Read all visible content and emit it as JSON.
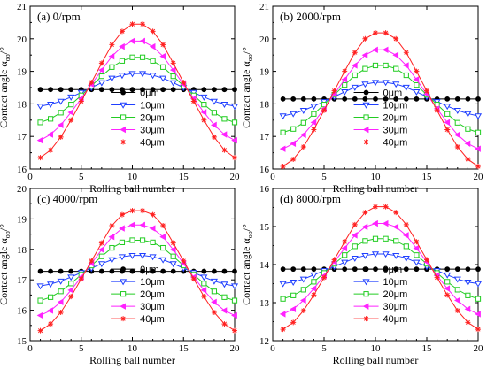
{
  "series_styles": [
    {
      "name": "0μm",
      "color": "#000000",
      "marker": "circle-filled"
    },
    {
      "name": "10μm",
      "color": "#1f3fff",
      "marker": "triangle-down-open"
    },
    {
      "name": "20μm",
      "color": "#22cc22",
      "marker": "square-open"
    },
    {
      "name": "30μm",
      "color": "#ff22ff",
      "marker": "triangle-left-filled"
    },
    {
      "name": "40μm",
      "color": "#ff2020",
      "marker": "star"
    }
  ],
  "chart_data": [
    {
      "type": "line",
      "title": "(a) 0/rpm",
      "xlabel": "Rolling ball number",
      "ylabel": "Contact angle α",
      "ylabel_sub": "oo",
      "ylabel_unit": "/°",
      "xlim": [
        0,
        20
      ],
      "ylim": [
        16,
        21
      ],
      "xticks": [
        0,
        5,
        10,
        15,
        20
      ],
      "yticks": [
        16,
        17,
        18,
        19,
        20,
        21
      ],
      "legend_position": "center-bottom",
      "x": [
        1,
        2,
        3,
        4,
        5,
        6,
        7,
        8,
        9,
        10,
        11,
        12,
        13,
        14,
        15,
        16,
        17,
        18,
        19,
        20
      ],
      "series": [
        {
          "name": "0μm",
          "values": [
            18.44,
            18.44,
            18.44,
            18.44,
            18.44,
            18.44,
            18.44,
            18.44,
            18.44,
            18.44,
            18.44,
            18.44,
            18.44,
            18.44,
            18.44,
            18.44,
            18.44,
            18.44,
            18.44,
            18.44
          ]
        },
        {
          "name": "10μm",
          "values": [
            17.93,
            17.99,
            18.08,
            18.21,
            18.35,
            18.5,
            18.65,
            18.79,
            18.88,
            18.93,
            18.93,
            18.88,
            18.79,
            18.65,
            18.5,
            18.35,
            18.21,
            18.08,
            17.99,
            17.93
          ]
        },
        {
          "name": "20μm",
          "values": [
            17.43,
            17.54,
            17.73,
            17.98,
            18.26,
            18.55,
            18.85,
            19.13,
            19.32,
            19.43,
            19.43,
            19.32,
            19.13,
            18.85,
            18.55,
            18.26,
            17.98,
            17.73,
            17.54,
            17.43
          ]
        },
        {
          "name": "30μm",
          "values": [
            16.88,
            17.06,
            17.35,
            17.74,
            18.16,
            18.6,
            19.04,
            19.46,
            19.76,
            19.93,
            19.93,
            19.76,
            19.46,
            19.04,
            18.6,
            18.16,
            17.74,
            17.35,
            17.06,
            16.88
          ]
        },
        {
          "name": "40μm",
          "values": [
            16.35,
            16.58,
            16.98,
            17.5,
            18.08,
            18.66,
            19.25,
            19.82,
            20.23,
            20.45,
            20.45,
            20.23,
            19.82,
            19.25,
            18.66,
            18.08,
            17.5,
            16.98,
            16.58,
            16.35
          ]
        }
      ]
    },
    {
      "type": "line",
      "title": "(b) 2000/rpm",
      "xlabel": "Rolling ball number",
      "ylabel": "Contact angle α",
      "ylabel_sub": "oo",
      "ylabel_unit": "/°",
      "xlim": [
        0,
        20
      ],
      "ylim": [
        16,
        21
      ],
      "xticks": [
        0,
        5,
        10,
        15,
        20
      ],
      "yticks": [
        16,
        17,
        18,
        19,
        20,
        21
      ],
      "legend_position": "center-bottom",
      "x": [
        1,
        2,
        3,
        4,
        5,
        6,
        7,
        8,
        9,
        10,
        11,
        12,
        13,
        14,
        15,
        16,
        17,
        18,
        19,
        20
      ],
      "series": [
        {
          "name": "0μm",
          "values": [
            18.15,
            18.15,
            18.15,
            18.15,
            18.15,
            18.15,
            18.15,
            18.15,
            18.15,
            18.15,
            18.15,
            18.15,
            18.15,
            18.15,
            18.15,
            18.15,
            18.15,
            18.15,
            18.15,
            18.15
          ]
        },
        {
          "name": "10μm",
          "values": [
            17.63,
            17.7,
            17.8,
            17.93,
            18.07,
            18.22,
            18.37,
            18.51,
            18.61,
            18.66,
            18.66,
            18.61,
            18.51,
            18.37,
            18.22,
            18.07,
            17.93,
            17.8,
            17.7,
            17.63
          ]
        },
        {
          "name": "20μm",
          "values": [
            17.12,
            17.23,
            17.42,
            17.69,
            17.98,
            18.28,
            18.58,
            18.88,
            19.08,
            19.18,
            19.18,
            19.08,
            18.88,
            18.58,
            18.28,
            17.98,
            17.69,
            17.42,
            17.23,
            17.12
          ]
        },
        {
          "name": "30μm",
          "values": [
            16.62,
            16.78,
            17.05,
            17.43,
            17.85,
            18.3,
            18.75,
            19.18,
            19.5,
            19.66,
            19.66,
            19.5,
            19.18,
            18.75,
            18.3,
            17.85,
            17.43,
            17.05,
            16.78,
            16.62
          ]
        },
        {
          "name": "40μm",
          "values": [
            16.08,
            16.3,
            16.68,
            17.21,
            17.8,
            18.4,
            19.0,
            19.58,
            20.0,
            20.18,
            20.18,
            20.0,
            19.58,
            19.0,
            18.4,
            17.8,
            17.21,
            16.68,
            16.3,
            16.08
          ]
        }
      ]
    },
    {
      "type": "line",
      "title": "(c) 4000/rpm",
      "xlabel": "Rolling ball number",
      "ylabel": "Contact angle α",
      "ylabel_sub": "oo",
      "ylabel_unit": "/°",
      "xlim": [
        0,
        20
      ],
      "ylim": [
        15,
        20
      ],
      "xticks": [
        0,
        5,
        10,
        15,
        20
      ],
      "yticks": [
        15,
        16,
        17,
        18,
        19,
        20
      ],
      "legend_position": "center-bottom",
      "x": [
        1,
        2,
        3,
        4,
        5,
        6,
        7,
        8,
        9,
        10,
        11,
        12,
        13,
        14,
        15,
        16,
        17,
        18,
        19,
        20
      ],
      "series": [
        {
          "name": "0μm",
          "values": [
            17.28,
            17.28,
            17.28,
            17.28,
            17.28,
            17.28,
            17.28,
            17.28,
            17.28,
            17.28,
            17.28,
            17.28,
            17.28,
            17.28,
            17.28,
            17.28,
            17.28,
            17.28,
            17.28,
            17.28
          ]
        },
        {
          "name": "10μm",
          "values": [
            16.8,
            16.86,
            16.96,
            17.09,
            17.24,
            17.38,
            17.53,
            17.66,
            17.76,
            17.8,
            17.8,
            17.76,
            17.66,
            17.53,
            17.38,
            17.24,
            17.09,
            16.96,
            16.86,
            16.8
          ]
        },
        {
          "name": "20μm",
          "values": [
            16.32,
            16.43,
            16.62,
            16.88,
            17.17,
            17.47,
            17.77,
            18.05,
            18.23,
            18.3,
            18.3,
            18.23,
            18.05,
            17.77,
            17.47,
            17.17,
            16.88,
            16.62,
            16.43,
            16.32
          ]
        },
        {
          "name": "30μm",
          "values": [
            15.83,
            15.99,
            16.27,
            16.66,
            17.09,
            17.54,
            17.99,
            18.41,
            18.69,
            18.8,
            18.8,
            18.69,
            18.41,
            17.99,
            17.54,
            17.09,
            16.66,
            16.27,
            15.99,
            15.83
          ]
        },
        {
          "name": "40μm",
          "values": [
            15.33,
            15.55,
            15.93,
            16.45,
            17.03,
            17.62,
            18.21,
            18.78,
            19.14,
            19.27,
            19.27,
            19.14,
            18.78,
            18.21,
            17.62,
            17.03,
            16.45,
            15.93,
            15.55,
            15.33
          ]
        }
      ]
    },
    {
      "type": "line",
      "title": "(d) 8000/rpm",
      "xlabel": "Rolling ball number",
      "ylabel": "Contact angle α",
      "ylabel_sub": "oo",
      "ylabel_unit": "/°",
      "xlim": [
        0,
        20
      ],
      "ylim": [
        12,
        16
      ],
      "xticks": [
        0,
        5,
        10,
        15,
        20
      ],
      "yticks": [
        12,
        13,
        14,
        15,
        16
      ],
      "legend_position": "center-bottom",
      "x": [
        1,
        2,
        3,
        4,
        5,
        6,
        7,
        8,
        9,
        10,
        11,
        12,
        13,
        14,
        15,
        16,
        17,
        18,
        19,
        20
      ],
      "series": [
        {
          "name": "0μm",
          "values": [
            13.88,
            13.88,
            13.88,
            13.88,
            13.88,
            13.88,
            13.88,
            13.88,
            13.88,
            13.88,
            13.88,
            13.88,
            13.88,
            13.88,
            13.88,
            13.88,
            13.88,
            13.88,
            13.88,
            13.88
          ]
        },
        {
          "name": "10μm",
          "values": [
            13.5,
            13.54,
            13.62,
            13.73,
            13.84,
            13.95,
            14.06,
            14.17,
            14.24,
            14.28,
            14.28,
            14.24,
            14.17,
            14.06,
            13.95,
            13.84,
            13.73,
            13.62,
            13.54,
            13.5
          ]
        },
        {
          "name": "20μm",
          "values": [
            13.1,
            13.19,
            13.34,
            13.55,
            13.78,
            14.02,
            14.25,
            14.48,
            14.62,
            14.68,
            14.68,
            14.62,
            14.48,
            14.25,
            14.02,
            13.78,
            13.55,
            13.34,
            13.19,
            13.1
          ]
        },
        {
          "name": "30μm",
          "values": [
            12.7,
            12.83,
            13.06,
            13.37,
            13.71,
            14.07,
            14.43,
            14.77,
            14.99,
            15.08,
            15.08,
            14.99,
            14.77,
            14.43,
            14.07,
            13.71,
            13.37,
            13.06,
            12.83,
            12.7
          ]
        },
        {
          "name": "40μm",
          "values": [
            12.3,
            12.48,
            12.79,
            13.2,
            13.66,
            14.13,
            14.6,
            15.05,
            15.37,
            15.52,
            15.52,
            15.37,
            15.05,
            14.6,
            14.13,
            13.66,
            13.2,
            12.79,
            12.48,
            12.3
          ]
        }
      ]
    }
  ]
}
